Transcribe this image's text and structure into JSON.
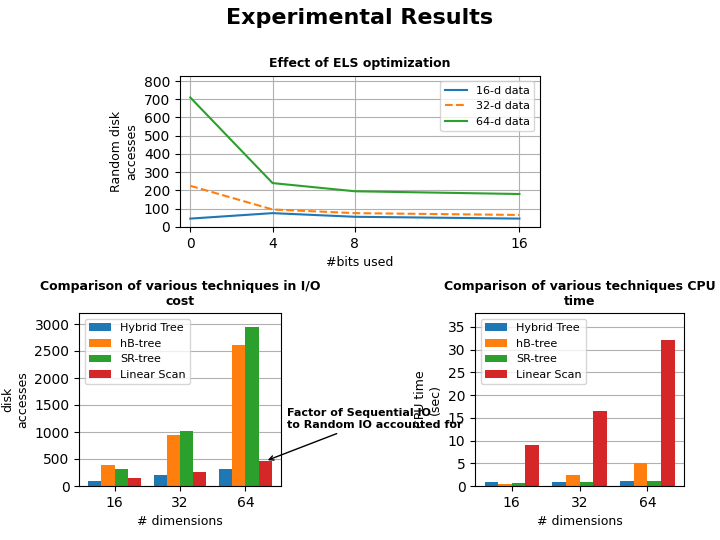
{
  "title": "Experimental Results",
  "chart_data": [
    {
      "type": "line",
      "title": "Effect of ELS optimization",
      "xlabel": "#bits used",
      "ylabel": "Random disk\naccesses",
      "x": [
        0,
        4,
        8,
        16
      ],
      "xlim": [
        -0.5,
        17
      ],
      "xticks": [
        0,
        4,
        8,
        16
      ],
      "ylim": [
        0,
        830
      ],
      "yticks": [
        0,
        100,
        200,
        300,
        400,
        500,
        600,
        700,
        800
      ],
      "grid": true,
      "legend": "upper right",
      "series": [
        {
          "name": "16-d data",
          "values": [
            45,
            75,
            55,
            45
          ],
          "line_style": "solid"
        },
        {
          "name": "32-d data",
          "values": [
            225,
            95,
            75,
            65
          ],
          "line_style": "dashed"
        },
        {
          "name": "64-d data",
          "values": [
            710,
            240,
            195,
            180
          ],
          "line_style": "solid"
        }
      ]
    },
    {
      "type": "bar",
      "title": "Comparison of various techniques in I/O\ncost",
      "xlabel": "# dimensions",
      "ylabel": "Random\ndisk\naccesses",
      "categories": [
        "16",
        "32",
        "64"
      ],
      "ylim": [
        0,
        3200
      ],
      "yticks": [
        0,
        500,
        1000,
        1500,
        2000,
        2500,
        3000
      ],
      "grid": "y",
      "legend": "upper left",
      "series": [
        {
          "name": "Hybrid Tree",
          "values": [
            100,
            200,
            320
          ]
        },
        {
          "name": "hB-tree",
          "values": [
            380,
            950,
            2620
          ]
        },
        {
          "name": "SR-tree",
          "values": [
            320,
            1020,
            2940
          ]
        },
        {
          "name": "Linear Scan",
          "values": [
            150,
            260,
            460
          ]
        }
      ],
      "annotations": [
        {
          "text": "Factor of Sequential IO\nto Random IO accounted for",
          "series": "Linear Scan",
          "category": "64"
        }
      ]
    },
    {
      "type": "bar",
      "title": "Comparison of various techniques CPU\ntime",
      "xlabel": "# dimensions",
      "ylabel": "CPU time\n(sec)",
      "categories": [
        "16",
        "32",
        "64"
      ],
      "ylim": [
        0,
        38
      ],
      "yticks": [
        0,
        5,
        10,
        15,
        20,
        25,
        30,
        35
      ],
      "grid": "y",
      "legend": "upper left",
      "series": [
        {
          "name": "Hybrid Tree",
          "values": [
            0.8,
            0.9,
            1.0
          ]
        },
        {
          "name": "hB-tree",
          "values": [
            0.5,
            2.5,
            5.0
          ]
        },
        {
          "name": "SR-tree",
          "values": [
            0.7,
            0.9,
            1.1
          ]
        },
        {
          "name": "Linear Scan",
          "values": [
            9.0,
            16.5,
            32.0
          ]
        }
      ]
    }
  ]
}
